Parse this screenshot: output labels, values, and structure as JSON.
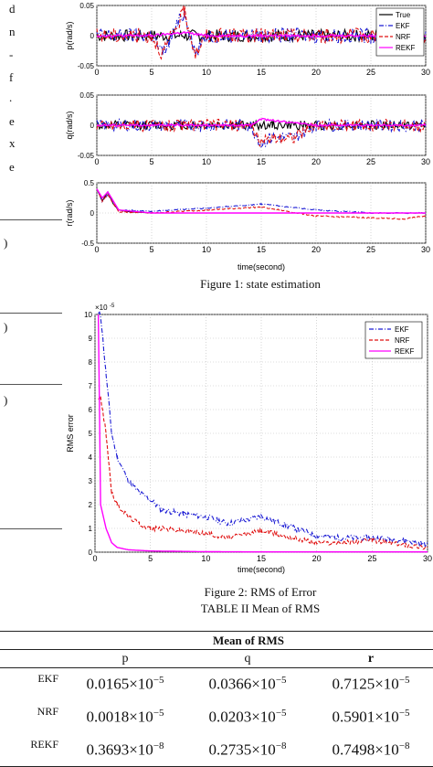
{
  "left_fragments": {
    "words": [
      "d",
      "n",
      "-",
      "f",
      ".",
      "e",
      "x",
      "e"
    ],
    "marks": [
      ")",
      ")",
      ")"
    ]
  },
  "figure1": {
    "caption": "Figure 1: state estimation",
    "xlabel": "time(second)",
    "xticks": [
      "0",
      "5",
      "10",
      "15",
      "20",
      "25",
      "30"
    ],
    "legend": [
      "True",
      "EKF",
      "NRF",
      "REKF"
    ]
  },
  "figure2": {
    "caption": "Figure 2: RMS of Error",
    "xlabel": "time(second)",
    "ylabel": "RMS error",
    "multiplier": "×10",
    "exponent": "-5",
    "xticks": [
      "0",
      "5",
      "10",
      "15",
      "20",
      "25",
      "30"
    ],
    "yticks": [
      "0",
      "1",
      "2",
      "3",
      "4",
      "5",
      "6",
      "7",
      "8",
      "9",
      "10"
    ],
    "legend": [
      "EKF",
      "NRF",
      "REKF"
    ]
  },
  "colors": {
    "true": "#000000",
    "ekf": "#1a1ad4",
    "nrf": "#e01010",
    "rekf": "#ff00ff"
  },
  "chart_data": [
    {
      "type": "line",
      "ylabel": "p(rad/s)",
      "xlim": [
        0,
        30
      ],
      "ylim": [
        -0.05,
        0.05
      ],
      "yticks": [
        "0.05",
        "0",
        "-0.05"
      ],
      "grid": true,
      "legend_position": "top-right",
      "series": [
        {
          "name": "True",
          "x": [
            0,
            5,
            8,
            10,
            15,
            20,
            25,
            30
          ],
          "y": [
            0,
            0,
            0,
            0,
            0,
            0,
            0,
            0
          ]
        },
        {
          "name": "EKF",
          "x": [
            0,
            5,
            6,
            8,
            9,
            10,
            15,
            20,
            25,
            30
          ],
          "y": [
            0,
            0,
            -0.03,
            0.04,
            -0.03,
            0,
            0,
            0,
            0,
            0
          ]
        },
        {
          "name": "NRF",
          "x": [
            0,
            5,
            6,
            8,
            9,
            10,
            15,
            20,
            25,
            30
          ],
          "y": [
            0,
            0,
            -0.03,
            0.04,
            -0.03,
            0,
            0,
            0,
            0,
            0
          ]
        },
        {
          "name": "REKF",
          "x": [
            0,
            5,
            8,
            10,
            15,
            20,
            25,
            30
          ],
          "y": [
            0,
            0,
            0.005,
            0,
            0,
            0,
            0,
            0
          ]
        }
      ]
    },
    {
      "type": "line",
      "ylabel": "q(rad/s)",
      "xlim": [
        0,
        30
      ],
      "ylim": [
        -0.05,
        0.05
      ],
      "yticks": [
        "0.05",
        "0",
        "-0.05"
      ],
      "grid": true,
      "series": [
        {
          "name": "True",
          "x": [
            0,
            15,
            16,
            18,
            20,
            30
          ],
          "y": [
            0,
            0,
            0,
            0,
            0,
            0
          ]
        },
        {
          "name": "EKF",
          "x": [
            0,
            14,
            15,
            16,
            18,
            20,
            30
          ],
          "y": [
            0,
            0,
            -0.03,
            -0.02,
            -0.02,
            0,
            0
          ]
        },
        {
          "name": "NRF",
          "x": [
            0,
            14,
            15,
            16,
            18,
            20,
            30
          ],
          "y": [
            0,
            0,
            -0.03,
            -0.02,
            -0.02,
            0,
            0
          ]
        },
        {
          "name": "REKF",
          "x": [
            0,
            14,
            15,
            20,
            30
          ],
          "y": [
            0,
            0,
            0.01,
            0,
            0
          ]
        }
      ]
    },
    {
      "type": "line",
      "ylabel": "r(rad/s)",
      "xlim": [
        0,
        30
      ],
      "ylim": [
        -0.5,
        0.5
      ],
      "yticks": [
        "0.5",
        "0",
        "-0.5"
      ],
      "grid": true,
      "series": [
        {
          "name": "True",
          "x": [
            0,
            0.5,
            1,
            1.5,
            2,
            3,
            5,
            30
          ],
          "y": [
            0.4,
            0.2,
            0.35,
            0.15,
            0.05,
            0.02,
            0,
            0
          ]
        },
        {
          "name": "EKF",
          "x": [
            0,
            0.5,
            1,
            2,
            5,
            10,
            15,
            20,
            25,
            30
          ],
          "y": [
            0.4,
            0.2,
            0.3,
            0.05,
            0.03,
            0.08,
            0.15,
            0.05,
            0,
            0
          ]
        },
        {
          "name": "NRF",
          "x": [
            0,
            0.5,
            1,
            2,
            5,
            10,
            15,
            20,
            25,
            28,
            30
          ],
          "y": [
            0.4,
            0.2,
            0.3,
            0.02,
            0,
            0.05,
            0.1,
            -0.05,
            -0.08,
            -0.1,
            -0.05
          ]
        },
        {
          "name": "REKF",
          "x": [
            0,
            0.5,
            1,
            2,
            5,
            30
          ],
          "y": [
            0.4,
            0.25,
            0.35,
            0.05,
            0,
            0
          ]
        }
      ]
    },
    {
      "type": "line",
      "xlabel": "time(second)",
      "ylabel": "RMS error",
      "xlim": [
        0,
        30
      ],
      "ylim": [
        0,
        10
      ],
      "yscale_note": "×10^-5",
      "grid": true,
      "legend_position": "top-right",
      "series": [
        {
          "name": "EKF",
          "x": [
            0.3,
            0.5,
            1,
            1.5,
            2,
            3,
            4,
            5,
            6,
            8,
            10,
            12,
            15,
            18,
            20,
            22,
            25,
            28,
            30
          ],
          "y": [
            10,
            10,
            7.5,
            5,
            4,
            3,
            2.5,
            2.2,
            1.8,
            1.6,
            1.5,
            1.2,
            1.5,
            1.0,
            0.7,
            0.6,
            0.6,
            0.5,
            0.3
          ]
        },
        {
          "name": "NRF",
          "x": [
            0.3,
            0.5,
            1,
            1.5,
            2,
            3,
            4,
            5,
            6,
            8,
            10,
            12,
            15,
            18,
            20,
            22,
            25,
            28,
            30
          ],
          "y": [
            6.5,
            6.5,
            5,
            2.5,
            2,
            1.5,
            1.2,
            1.0,
            1.0,
            0.9,
            0.8,
            0.6,
            0.9,
            0.6,
            0.4,
            0.4,
            0.5,
            0.3,
            0.2
          ]
        },
        {
          "name": "REKF",
          "x": [
            0.3,
            0.5,
            1,
            1.5,
            2,
            3,
            5,
            10,
            15,
            20,
            25,
            30
          ],
          "y": [
            10,
            2,
            1,
            0.4,
            0.2,
            0.1,
            0.05,
            0.02,
            0.01,
            0.01,
            0.01,
            0.01
          ]
        }
      ]
    }
  ],
  "table": {
    "title": "TABLE II Mean of RMS",
    "header": "Mean of RMS",
    "columns": [
      "p",
      "q",
      "r"
    ],
    "rows": [
      {
        "label": "EKF",
        "p": "0.0165",
        "p_exp": "−5",
        "q": "0.0366",
        "q_exp": "−5",
        "r": "0.7125",
        "r_exp": "−5"
      },
      {
        "label": "NRF",
        "p": "0.0018",
        "p_exp": "−5",
        "q": "0.0203",
        "q_exp": "−5",
        "r": "0.5901",
        "r_exp": "−5"
      },
      {
        "label": "REKF",
        "p": "0.3693",
        "p_exp": "−8",
        "q": "0.2735",
        "q_exp": "−8",
        "r": "0.7498",
        "r_exp": "−8"
      }
    ],
    "times": "×10"
  }
}
